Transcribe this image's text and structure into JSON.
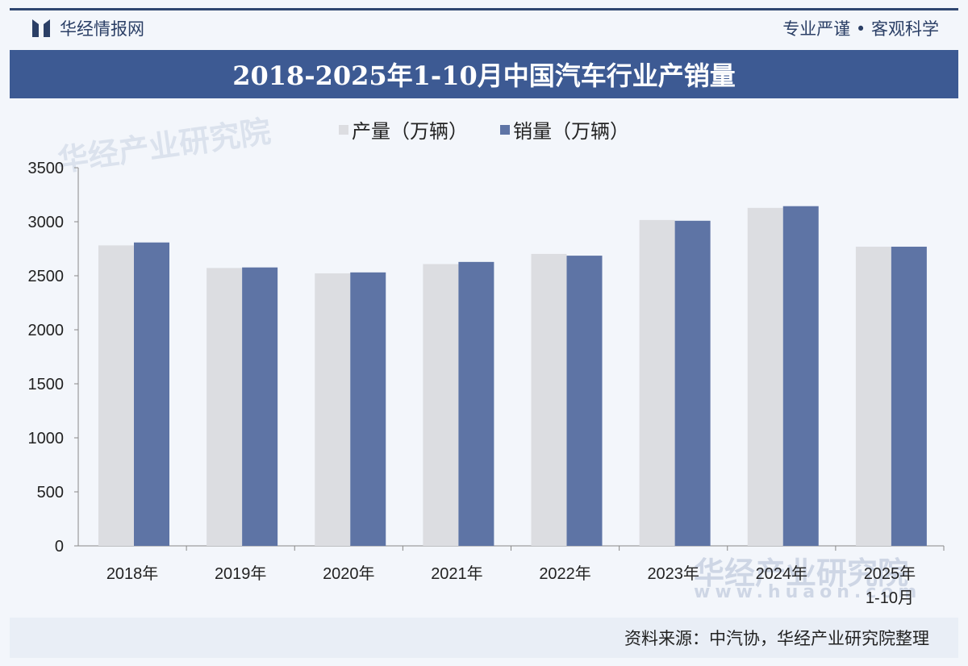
{
  "header": {
    "brand": "华经情报网",
    "slogan": "专业严谨 • 客观科学",
    "title": "2018-2025年1-10月中国汽车行业产销量"
  },
  "watermark": {
    "text": "华经产业研究院",
    "url": "www.huaon.com"
  },
  "source": "资料来源：中汽协，华经产业研究院整理",
  "colors": {
    "production": "#dcdde1",
    "sales": "#5e74a5",
    "title_bg": "#3d5a93"
  },
  "chart_data": {
    "type": "bar",
    "title": "2018-2025年1-10月中国汽车行业产销量",
    "categories": [
      "2018年",
      "2019年",
      "2020年",
      "2021年",
      "2022年",
      "2023年",
      "2024年",
      "2025年\n1-10月"
    ],
    "series": [
      {
        "name": "产量（万辆）",
        "values": [
          2781,
          2572,
          2522,
          2608,
          2702,
          3016,
          3128,
          2769
        ]
      },
      {
        "name": "销量（万辆）",
        "values": [
          2808,
          2577,
          2531,
          2628,
          2686,
          3009,
          3144,
          2769
        ]
      }
    ],
    "ylim": [
      0,
      3500
    ],
    "yticks": [
      0,
      500,
      1000,
      1500,
      2000,
      2500,
      3000,
      3500
    ],
    "grid": false,
    "legend": "top-center"
  }
}
